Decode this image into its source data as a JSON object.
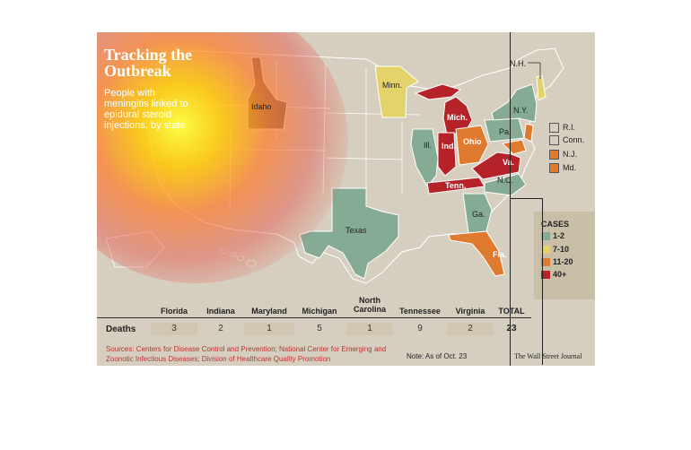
{
  "title": "Tracking the Outbreak",
  "subtitle": "People with meningitis linked to epidural steroid injections, by state",
  "colors": {
    "c1_2": "#86ab95",
    "c7_10": "#e4d36a",
    "c11_20": "#e07a2f",
    "c40": "#b52228",
    "none": "#d6cfbf"
  },
  "states": {
    "idaho": "Idaho",
    "minnesota": "Minn.",
    "michigan": "Mich.",
    "illinois": "Ill.",
    "indiana": "Ind.",
    "ohio": "Ohio",
    "pennsylvania": "Pa.",
    "new_york": "N.Y.",
    "new_hampshire": "N.H.",
    "virginia": "Va.",
    "tennessee": "Tenn.",
    "north_carolina": "N.C.",
    "georgia": "Ga.",
    "florida": "Fla.",
    "texas": "Texas"
  },
  "side_keys": [
    {
      "label": "R.I.",
      "color": "#d6cfbf"
    },
    {
      "label": "Conn.",
      "color": "#d6cfbf"
    },
    {
      "label": "N.J.",
      "color": "#e07a2f"
    },
    {
      "label": "Md.",
      "color": "#e07a2f"
    }
  ],
  "legend": {
    "title": "CASES",
    "items": [
      {
        "label": "1-2",
        "color": "#86ab95"
      },
      {
        "label": "7-10",
        "color": "#e4d36a"
      },
      {
        "label": "11-20",
        "color": "#e07a2f"
      },
      {
        "label": "40+",
        "color": "#b52228"
      }
    ]
  },
  "table": {
    "row_label": "Deaths",
    "columns": [
      "Florida",
      "Indiana",
      "Maryland",
      "Michigan",
      "North Carolina",
      "Tennessee",
      "Virginia",
      "TOTAL"
    ],
    "values": [
      "3",
      "2",
      "1",
      "5",
      "1",
      "9",
      "2",
      "23"
    ]
  },
  "source": "Sources: Centers for Disease Control and Prevention; National Center for Emerging and Zoonotic Infectious Diseases; Division of Healthcare Quality Promotion",
  "note": "Note: As of Oct. 23",
  "credit": "The Wall Street Journal"
}
